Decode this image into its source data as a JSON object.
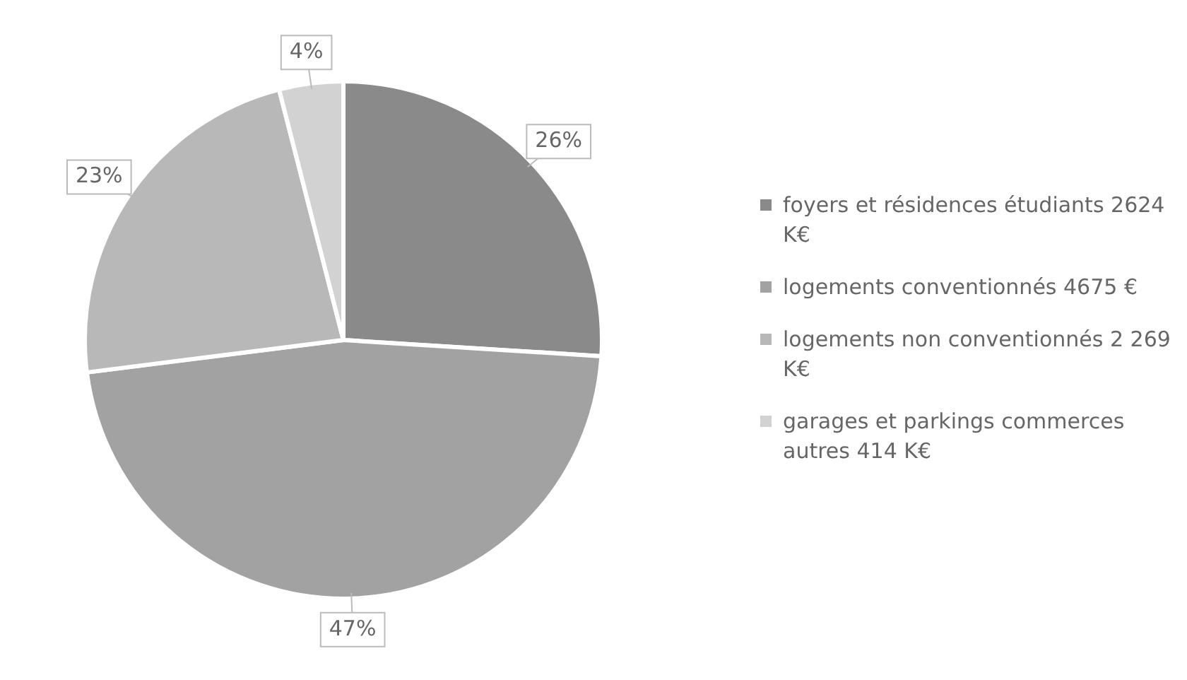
{
  "chart_data": {
    "type": "pie",
    "categories": [
      "foyers et résidences étudiants 2624 K€",
      "logements conventionnés 4675 €",
      "logements non conventionnés 2 269 K€",
      "garages et parkings commerces autres 414 K€"
    ],
    "values": [
      26,
      47,
      23,
      4
    ],
    "value_labels": [
      "26%",
      "47%",
      "23%",
      "4%"
    ],
    "colors": [
      "#8a8a8a",
      "#a2a2a2",
      "#b8b8b8",
      "#d2d2d2"
    ],
    "legend": "right"
  }
}
